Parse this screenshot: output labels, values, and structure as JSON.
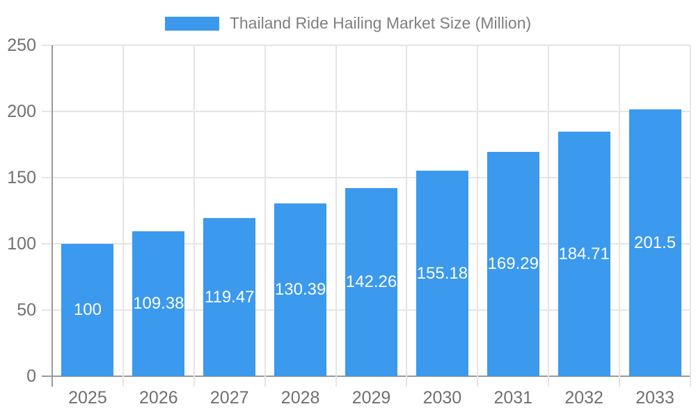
{
  "legend": {
    "label": "Thailand Ride Hailing Market Size (Million)"
  },
  "colors": {
    "bar": "#3B99EE",
    "axis_line": "#999999",
    "grid_line": "#e5e5e5",
    "axis_tick_label": "#707070",
    "legend_text": "#7f7f7f",
    "value_label": "#ffffff",
    "background": "#ffffff"
  },
  "chart_data": {
    "type": "bar",
    "title": "Thailand Ride Hailing Market Size (Million)",
    "categories": [
      "2025",
      "2026",
      "2027",
      "2028",
      "2029",
      "2030",
      "2031",
      "2032",
      "2033"
    ],
    "values": [
      100,
      109.38,
      119.47,
      130.39,
      142.26,
      155.18,
      169.29,
      184.71,
      201.5
    ],
    "value_labels": [
      "100",
      "109.38",
      "119.47",
      "130.39",
      "142.26",
      "155.18",
      "169.29",
      "184.71",
      "201.5"
    ],
    "xlabel": "",
    "ylabel": "",
    "ylim": [
      0,
      250
    ],
    "yticks": [
      0,
      50,
      100,
      150,
      200,
      250
    ],
    "grid": true,
    "legend_position": "top",
    "value_labels_position": "center-inside-bar"
  }
}
